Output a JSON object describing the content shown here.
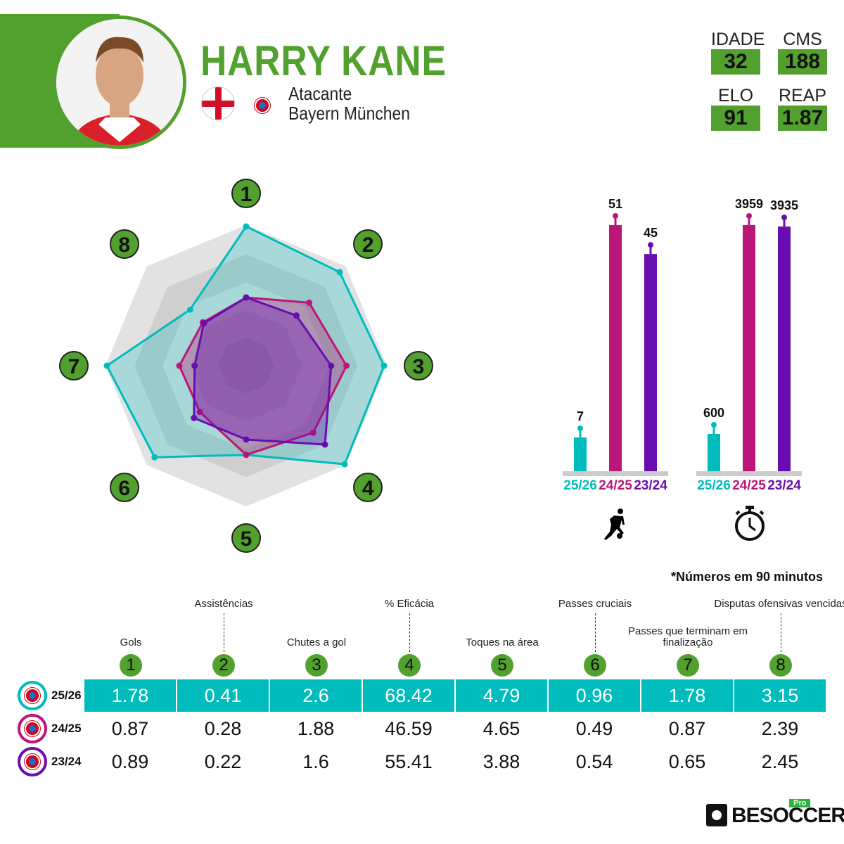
{
  "player": {
    "name": "HARRY KANE",
    "position": "Atacante",
    "club": "Bayern München",
    "nationality_flag": "england-flag",
    "club_crest": "bayern-crest"
  },
  "stats": [
    {
      "label": "IDADE",
      "value": "32"
    },
    {
      "label": "CMS",
      "value": "188"
    },
    {
      "label": "ELO",
      "value": "91"
    },
    {
      "label": "REAP",
      "value": "1.87"
    }
  ],
  "colors": {
    "accent": "#52a12e",
    "s2526": "#00bcbc",
    "s2425": "#bb1679",
    "s2324": "#6a0db0"
  },
  "chart_data": [
    {
      "type": "radar",
      "axes": [
        "1",
        "2",
        "3",
        "4",
        "5",
        "6",
        "7",
        "8"
      ],
      "range": [
        0,
        1
      ],
      "series": [
        {
          "name": "25/26",
          "values": [
            1.0,
            0.95,
            0.99,
            1.0,
            0.64,
            0.93,
            1.0,
            0.57
          ]
        },
        {
          "name": "24/25",
          "values": [
            0.49,
            0.64,
            0.72,
            0.68,
            0.64,
            0.47,
            0.48,
            0.44
          ]
        },
        {
          "name": "23/24",
          "values": [
            0.49,
            0.51,
            0.61,
            0.8,
            0.53,
            0.53,
            0.37,
            0.43
          ]
        }
      ]
    },
    {
      "type": "bar",
      "categories": [
        "25/26",
        "24/25",
        "23/24"
      ],
      "values": [
        7,
        51,
        45
      ],
      "icon": "player-kicking-ball-icon"
    },
    {
      "type": "bar",
      "categories": [
        "25/26",
        "24/25",
        "23/24"
      ],
      "values": [
        600,
        3959,
        3935
      ],
      "icon": "stopwatch-icon"
    }
  ],
  "footnote": "*Números em 90 minutos",
  "table": {
    "columns": [
      {
        "n": "1",
        "label": "Gols"
      },
      {
        "n": "2",
        "label": "Assistências"
      },
      {
        "n": "3",
        "label": "Chutes a gol"
      },
      {
        "n": "4",
        "label": "% Eficácia"
      },
      {
        "n": "5",
        "label": "Toques na área"
      },
      {
        "n": "6",
        "label": "Passes cruciais"
      },
      {
        "n": "7",
        "label": "Passes que terminam em finalização"
      },
      {
        "n": "8",
        "label": "Disputas ofensivas vencidas"
      }
    ],
    "rows": [
      {
        "season": "25/26",
        "values": [
          "1.78",
          "0.41",
          "2.6",
          "68.42",
          "4.79",
          "0.96",
          "1.78",
          "3.15"
        ]
      },
      {
        "season": "24/25",
        "values": [
          "0.87",
          "0.28",
          "1.88",
          "46.59",
          "4.65",
          "0.49",
          "0.87",
          "2.39"
        ]
      },
      {
        "season": "23/24",
        "values": [
          "0.89",
          "0.22",
          "1.6",
          "55.41",
          "3.88",
          "0.54",
          "0.65",
          "2.45"
        ]
      }
    ]
  },
  "brand": {
    "name": "BESOCCER",
    "badge": "Pro"
  }
}
